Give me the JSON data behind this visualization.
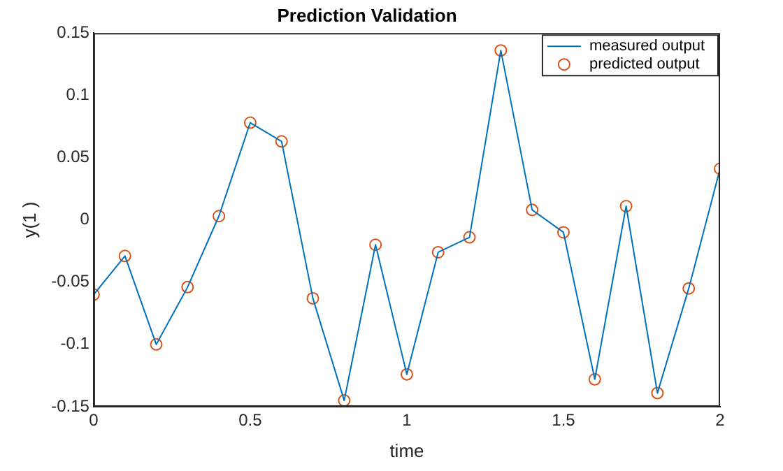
{
  "chart_data": {
    "type": "line",
    "title": "Prediction Validation",
    "xlabel": "time",
    "ylabel": "y(1 )",
    "x": [
      0,
      0.1,
      0.2,
      0.3,
      0.4,
      0.5,
      0.6,
      0.7,
      0.8,
      0.9,
      1,
      1.1,
      1.2,
      1.3,
      1.4,
      1.5,
      1.6,
      1.7,
      1.8,
      1.9,
      2
    ],
    "series": [
      {
        "name": "measured output",
        "type": "line",
        "marker": "none",
        "color": "#0072bd",
        "values": [
          -0.06,
          -0.029,
          -0.1,
          -0.054,
          0.003,
          0.078,
          0.063,
          -0.063,
          -0.145,
          -0.02,
          -0.124,
          -0.026,
          -0.014,
          0.136,
          0.008,
          -0.01,
          -0.128,
          0.011,
          -0.139,
          -0.055,
          0.041
        ]
      },
      {
        "name": "predicted output",
        "type": "scatter",
        "marker": "circle",
        "color": "#d95319",
        "values": [
          -0.06,
          -0.029,
          -0.1,
          -0.054,
          0.003,
          0.078,
          0.063,
          -0.063,
          -0.145,
          -0.02,
          -0.124,
          -0.026,
          -0.014,
          0.136,
          0.008,
          -0.01,
          -0.128,
          0.011,
          -0.139,
          -0.055,
          0.041
        ]
      }
    ],
    "xlim": [
      0,
      2
    ],
    "xticks": [
      0,
      0.5,
      1,
      1.5,
      2
    ],
    "ylim": [
      -0.15,
      0.15
    ],
    "yticks": [
      -0.15,
      -0.1,
      -0.05,
      0,
      0.05,
      0.1,
      0.15
    ],
    "grid": false,
    "legend": "top right"
  }
}
